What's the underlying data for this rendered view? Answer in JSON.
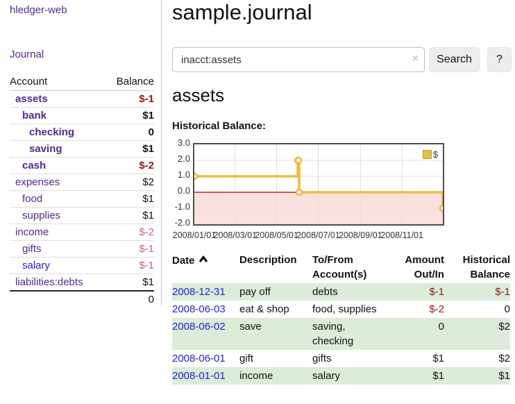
{
  "app": {
    "brand": "hledger-web",
    "nav_journal": "Journal"
  },
  "colors": {
    "link_purple": "#54278e",
    "link_blue": "#1f1fe0",
    "negative_strong": "#911717",
    "negative_soft": "#c06a6a",
    "row_green": "#dcecd8",
    "chart_line_gold": "#e9bd3e",
    "chart_negative_fill": "#f8d7d5",
    "chart_zero_line": "#9c0d0d"
  },
  "sidebar": {
    "headers": {
      "account": "Account",
      "balance": "Balance"
    },
    "accounts": [
      {
        "name": "assets",
        "balance": "$-1",
        "depth": 1,
        "bold": true,
        "balance_class": "neg-strong",
        "link": "purple"
      },
      {
        "name": "bank",
        "balance": "$1",
        "depth": 2,
        "bold": true,
        "balance_class": "pos",
        "link": "purple"
      },
      {
        "name": "checking",
        "balance": "0",
        "depth": 3,
        "bold": true,
        "balance_class": "pos",
        "link": "purple"
      },
      {
        "name": "saving",
        "balance": "$1",
        "depth": 3,
        "bold": true,
        "balance_class": "pos",
        "link": "purple"
      },
      {
        "name": "cash",
        "balance": "$-2",
        "depth": 2,
        "bold": true,
        "balance_class": "neg-strong",
        "link": "purple"
      },
      {
        "name": "expenses",
        "balance": "$2",
        "depth": 1,
        "bold": false,
        "balance_class": "pos",
        "link": "purple"
      },
      {
        "name": "food",
        "balance": "$1",
        "depth": 2,
        "bold": false,
        "balance_class": "pos",
        "link": "purple"
      },
      {
        "name": "supplies",
        "balance": "$1",
        "depth": 2,
        "bold": false,
        "balance_class": "pos",
        "link": "purple"
      },
      {
        "name": "income",
        "balance": "$-2",
        "depth": 1,
        "bold": false,
        "balance_class": "neg-soft",
        "link": "purple"
      },
      {
        "name": "gifts",
        "balance": "$-1",
        "depth": 2,
        "bold": false,
        "balance_class": "neg-soft",
        "link": "purple"
      },
      {
        "name": "salary",
        "balance": "$-1",
        "depth": 2,
        "bold": false,
        "balance_class": "neg-soft",
        "link": "blue"
      },
      {
        "name": "liabilities:debts",
        "balance": "$1",
        "depth": 1,
        "bold": false,
        "balance_class": "pos",
        "link": "purple"
      }
    ],
    "total": "0"
  },
  "header": {
    "title": "sample.journal"
  },
  "search": {
    "value": "inacct:assets",
    "clear_icon": "×",
    "button_label": "Search",
    "help_label": "?"
  },
  "account_page": {
    "heading": "assets",
    "chart_label": "Historical Balance:"
  },
  "chart_data": {
    "type": "line",
    "step": true,
    "title": "Historical Balance:",
    "xrange": [
      "2008-01-01",
      "2008-12-31"
    ],
    "ylim": [
      -2,
      3
    ],
    "y_ticks": [
      3.0,
      2.0,
      1.0,
      0.0,
      -1.0,
      -2.0
    ],
    "x_ticks": [
      {
        "label": "2008/01/01",
        "date": "2008-01-01"
      },
      {
        "label": "2008/03/01",
        "date": "2008-03-01"
      },
      {
        "label": "2008/05/01",
        "date": "2008-05-01"
      },
      {
        "label": "2008/07/01",
        "date": "2008-07-01"
      },
      {
        "label": "2008/09/01",
        "date": "2008-09-01"
      },
      {
        "label": "2008/11/01",
        "date": "2008-11-01"
      }
    ],
    "series": [
      {
        "name": "$",
        "color": "#e9bd3e",
        "points": [
          [
            "2008-01-01",
            1
          ],
          [
            "2008-06-01",
            2
          ],
          [
            "2008-06-02",
            2
          ],
          [
            "2008-06-03",
            0
          ],
          [
            "2008-12-31",
            -1
          ]
        ]
      }
    ],
    "legend_position": "top-right",
    "grid": true,
    "negative_region_fill": "#f8d7d5",
    "zero_line_color": "#9c0d0d"
  },
  "register_table": {
    "headers": {
      "date": "Date",
      "description": "Description",
      "accounts": "To/From Account(s)",
      "amount": "Amount Out/In",
      "balance": "Historical Balance"
    },
    "sort": {
      "column": "date",
      "direction": "asc"
    },
    "rows": [
      {
        "date": "2008-12-31",
        "description": "pay off",
        "accounts": "debts",
        "amount": "$-1",
        "balance": "$-1"
      },
      {
        "date": "2008-06-03",
        "description": "eat & shop",
        "accounts": "food, supplies",
        "amount": "$-2",
        "balance": "0"
      },
      {
        "date": "2008-06-02",
        "description": "save",
        "accounts": "saving,\nchecking",
        "amount": "0",
        "balance": "$2"
      },
      {
        "date": "2008-06-01",
        "description": "gift",
        "accounts": "gifts",
        "amount": "$1",
        "balance": "$2"
      },
      {
        "date": "2008-01-01",
        "description": "income",
        "accounts": "salary",
        "amount": "$1",
        "balance": "$1"
      }
    ]
  }
}
